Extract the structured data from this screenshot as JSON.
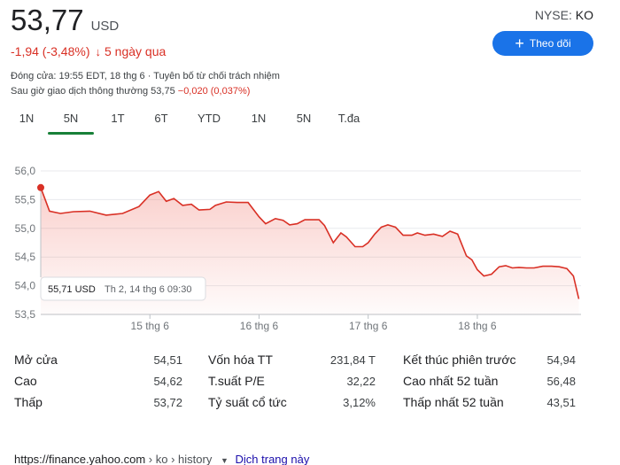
{
  "quote": {
    "price": "53,77",
    "currency": "USD",
    "exchange_prefix": "NYSE: ",
    "ticker": "KO",
    "change": "-1,94 (-3,48%)",
    "change_arrow": "↓",
    "period": "5 ngày qua",
    "closed_note": "Đóng cửa: 19:55 EDT, 18 thg 6 · Tuyên bố từ chối trách nhiệm",
    "after_hours_label": "Sau giờ giao dịch thông thường 53,75 ",
    "after_hours_change": "−0,020 (0,037%)",
    "follow_label": "Theo dõi"
  },
  "tabs": [
    {
      "label": "1N",
      "active": false
    },
    {
      "label": "5N",
      "active": true
    },
    {
      "label": "1T",
      "active": false
    },
    {
      "label": "6T",
      "active": false
    },
    {
      "label": "YTD",
      "active": false
    },
    {
      "label": "1N",
      "active": false
    },
    {
      "label": "5N",
      "active": false
    },
    {
      "label": "T.đa",
      "active": false
    }
  ],
  "chart_data": {
    "type": "area",
    "ylim": [
      53.5,
      56.0
    ],
    "y_ticks": [
      "56,0",
      "55,5",
      "55,0",
      "54,5",
      "54,0",
      "53,5"
    ],
    "y_tick_values": [
      56.0,
      55.5,
      55.0,
      54.5,
      54.0,
      53.5
    ],
    "x_ticks": [
      "15 thg 6",
      "16 thg 6",
      "17 thg 6",
      "18 thg 6"
    ],
    "x_tick_positions": [
      1,
      2,
      3,
      4
    ],
    "xlim": [
      0.0,
      4.95
    ],
    "line_color": "#d93025",
    "tooltip": {
      "price": "55,71 USD",
      "time": "Th 2, 14 thg 6 09:30"
    },
    "series": [
      {
        "x": [
          0.0,
          0.08,
          0.18,
          0.3,
          0.45,
          0.6,
          0.75,
          0.9,
          1.0,
          1.08,
          1.15,
          1.22,
          1.3,
          1.38,
          1.45,
          1.55,
          1.6,
          1.7,
          1.8,
          1.9,
          2.0,
          2.06,
          2.15,
          2.22,
          2.28,
          2.35,
          2.42,
          2.48,
          2.55,
          2.6,
          2.68,
          2.75,
          2.8,
          2.88,
          2.95,
          3.0,
          3.06,
          3.12,
          3.18,
          3.25,
          3.32,
          3.4,
          3.45,
          3.52,
          3.6,
          3.68,
          3.75,
          3.82,
          3.9,
          3.95,
          4.0,
          4.06,
          4.13,
          4.2,
          4.26,
          4.32,
          4.38,
          4.45,
          4.52,
          4.6,
          4.68,
          4.75,
          4.82,
          4.88,
          4.93
        ],
        "y": [
          55.71,
          55.3,
          55.26,
          55.29,
          55.3,
          55.23,
          55.26,
          55.38,
          55.58,
          55.64,
          55.47,
          55.52,
          55.4,
          55.42,
          55.32,
          55.33,
          55.4,
          55.46,
          55.45,
          55.45,
          55.2,
          55.08,
          55.17,
          55.14,
          55.06,
          55.08,
          55.15,
          55.15,
          55.15,
          55.05,
          54.75,
          54.92,
          54.85,
          54.68,
          54.68,
          54.75,
          54.9,
          55.02,
          55.06,
          55.02,
          54.88,
          54.88,
          54.92,
          54.88,
          54.9,
          54.86,
          54.95,
          54.9,
          54.52,
          54.45,
          54.28,
          54.17,
          54.2,
          54.33,
          54.35,
          54.31,
          54.32,
          54.31,
          54.31,
          54.34,
          54.34,
          54.33,
          54.3,
          54.17,
          53.77
        ]
      }
    ]
  },
  "stats": [
    {
      "label": "Mở cửa",
      "value": "54,51"
    },
    {
      "label": "Cao",
      "value": "54,62"
    },
    {
      "label": "Thấp",
      "value": "53,72"
    },
    {
      "label": "Vốn hóa TT",
      "value": "231,84 T"
    },
    {
      "label": "T.suất P/E",
      "value": "32,22"
    },
    {
      "label": "Tỷ suất cổ tức",
      "value": "3,12%"
    },
    {
      "label": "Kết thúc phiên trước",
      "value": "54,94"
    },
    {
      "label": "Cao nhất 52 tuần",
      "value": "56,48"
    },
    {
      "label": "Thấp nhất 52 tuần",
      "value": "43,51"
    }
  ],
  "source": {
    "url": "https://finance.yahoo.com",
    "crumb1": "ko",
    "crumb2": "history",
    "translate": "Dịch trang này"
  }
}
